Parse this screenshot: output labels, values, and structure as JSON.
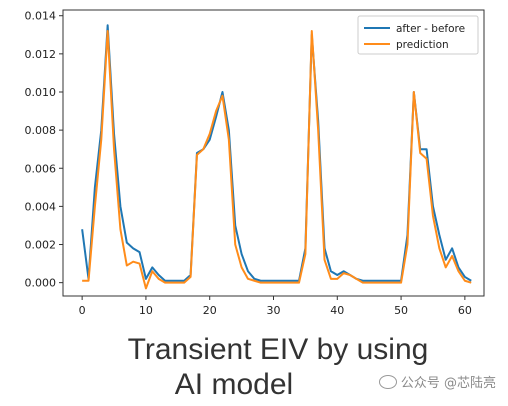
{
  "chart_data": {
    "type": "line",
    "x": [
      0,
      1,
      2,
      3,
      4,
      5,
      6,
      7,
      8,
      9,
      10,
      11,
      12,
      13,
      14,
      15,
      16,
      17,
      18,
      19,
      20,
      21,
      22,
      23,
      24,
      25,
      26,
      27,
      28,
      29,
      30,
      31,
      32,
      33,
      34,
      35,
      36,
      37,
      38,
      39,
      40,
      41,
      42,
      43,
      44,
      45,
      46,
      47,
      48,
      49,
      50,
      51,
      52,
      53,
      54,
      55,
      56,
      57,
      58,
      59,
      60,
      61
    ],
    "xlim": [
      -3,
      63
    ],
    "ylim": [
      -0.0007,
      0.0143
    ],
    "xticks": [
      0,
      10,
      20,
      30,
      40,
      50,
      60
    ],
    "yticks": [
      0.0,
      0.002,
      0.004,
      0.006,
      0.008,
      0.01,
      0.012,
      0.014
    ],
    "ytick_labels": [
      "0.000",
      "0.002",
      "0.004",
      "0.006",
      "0.008",
      "0.010",
      "0.012",
      "0.014"
    ],
    "grid": false,
    "legend_position": "top-right",
    "series": [
      {
        "name": "after - before",
        "color": "#1f77b4",
        "values": [
          0.0028,
          0.0002,
          0.005,
          0.008,
          0.0135,
          0.0078,
          0.004,
          0.0021,
          0.0018,
          0.0016,
          0.0002,
          0.0008,
          0.0004,
          0.0001,
          0.0001,
          0.0001,
          0.0001,
          0.0004,
          0.0068,
          0.007,
          0.0075,
          0.0087,
          0.01,
          0.008,
          0.003,
          0.0015,
          0.0006,
          0.0002,
          0.0001,
          0.0001,
          0.0001,
          0.0001,
          0.0001,
          0.0001,
          0.0001,
          0.0018,
          0.013,
          0.0085,
          0.0018,
          0.0006,
          0.0004,
          0.0006,
          0.0004,
          0.0002,
          0.0001,
          0.0001,
          0.0001,
          0.0001,
          0.0001,
          0.0001,
          0.0001,
          0.0025,
          0.01,
          0.007,
          0.007,
          0.004,
          0.0025,
          0.0012,
          0.0018,
          0.0008,
          0.0003,
          0.0001
        ]
      },
      {
        "name": "prediction",
        "color": "#ff8c1a",
        "values": [
          0.0001,
          0.0001,
          0.004,
          0.0075,
          0.0132,
          0.007,
          0.0028,
          0.0009,
          0.0011,
          0.001,
          -0.0003,
          0.0006,
          0.0002,
          0.0,
          0.0,
          0.0,
          0.0,
          0.0003,
          0.0067,
          0.007,
          0.0078,
          0.009,
          0.0098,
          0.0075,
          0.002,
          0.0008,
          0.0002,
          0.0001,
          0.0,
          0.0,
          0.0,
          0.0,
          0.0,
          0.0,
          0.0,
          0.0015,
          0.0132,
          0.008,
          0.0012,
          0.0002,
          0.0002,
          0.0005,
          0.0004,
          0.0002,
          0.0,
          0.0,
          0.0,
          0.0,
          0.0,
          0.0,
          0.0,
          0.002,
          0.01,
          0.0068,
          0.0065,
          0.0035,
          0.0018,
          0.0008,
          0.0014,
          0.0006,
          0.0001,
          0.0
        ]
      }
    ]
  },
  "caption": {
    "line1": "Transient EIV by using",
    "line2": "AI model"
  },
  "watermark": "公众号 @芯陆亮"
}
